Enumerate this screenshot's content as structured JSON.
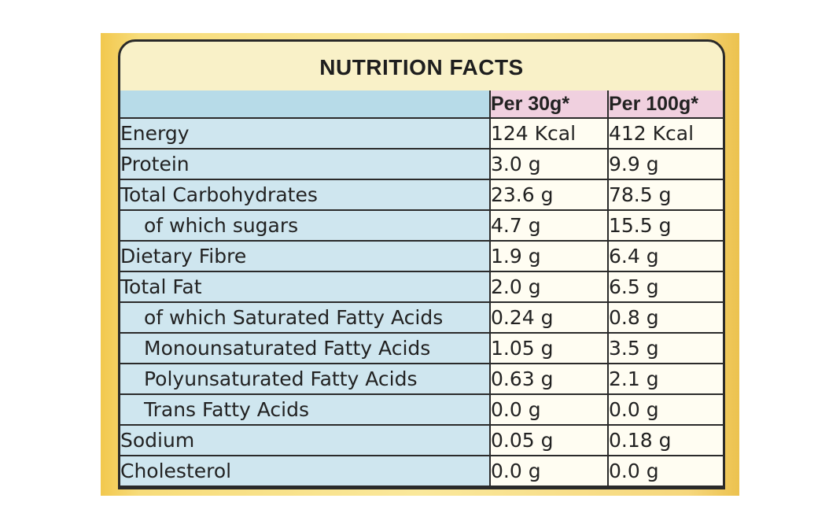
{
  "title": "NUTRITION FACTS",
  "columns": {
    "per_30g": "Per 30g*",
    "per_100g": "Per 100g*"
  },
  "rows": [
    {
      "label": "Energy",
      "per_30g": "124 Kcal",
      "per_100g": "412 Kcal",
      "indent": false
    },
    {
      "label": "Protein",
      "per_30g": "3.0 g",
      "per_100g": "9.9 g",
      "indent": false
    },
    {
      "label": "Total Carbohydrates",
      "per_30g": "23.6 g",
      "per_100g": "78.5 g",
      "indent": false
    },
    {
      "label": "of which sugars",
      "per_30g": "4.7 g",
      "per_100g": "15.5 g",
      "indent": true
    },
    {
      "label": "Dietary Fibre",
      "per_30g": "1.9 g",
      "per_100g": "6.4 g",
      "indent": false
    },
    {
      "label": "Total Fat",
      "per_30g": "2.0 g",
      "per_100g": "6.5 g",
      "indent": false
    },
    {
      "label": "of which Saturated Fatty Acids",
      "per_30g": "0.24 g",
      "per_100g": "0.8 g",
      "indent": true
    },
    {
      "label": "Monounsaturated Fatty Acids",
      "per_30g": "1.05 g",
      "per_100g": "3.5 g",
      "indent": true
    },
    {
      "label": "Polyunsaturated Fatty Acids",
      "per_30g": "0.63 g",
      "per_100g": "2.1 g",
      "indent": true
    },
    {
      "label": "Trans Fatty Acids",
      "per_30g": "0.0 g",
      "per_100g": "0.0 g",
      "indent": true
    },
    {
      "label": "Sodium",
      "per_30g": "0.05 g",
      "per_100g": "0.18 g",
      "indent": false
    },
    {
      "label": "Cholesterol",
      "per_30g": "0.0 g",
      "per_100g": "0.0 g",
      "indent": false
    }
  ],
  "colors": {
    "package_yellow": "#f7dc7a",
    "label_cream": "#f9f1c8",
    "name_column_blue": "#cfe6ef",
    "header_pink": "#f0d0df",
    "border": "#2a2a2a"
  }
}
